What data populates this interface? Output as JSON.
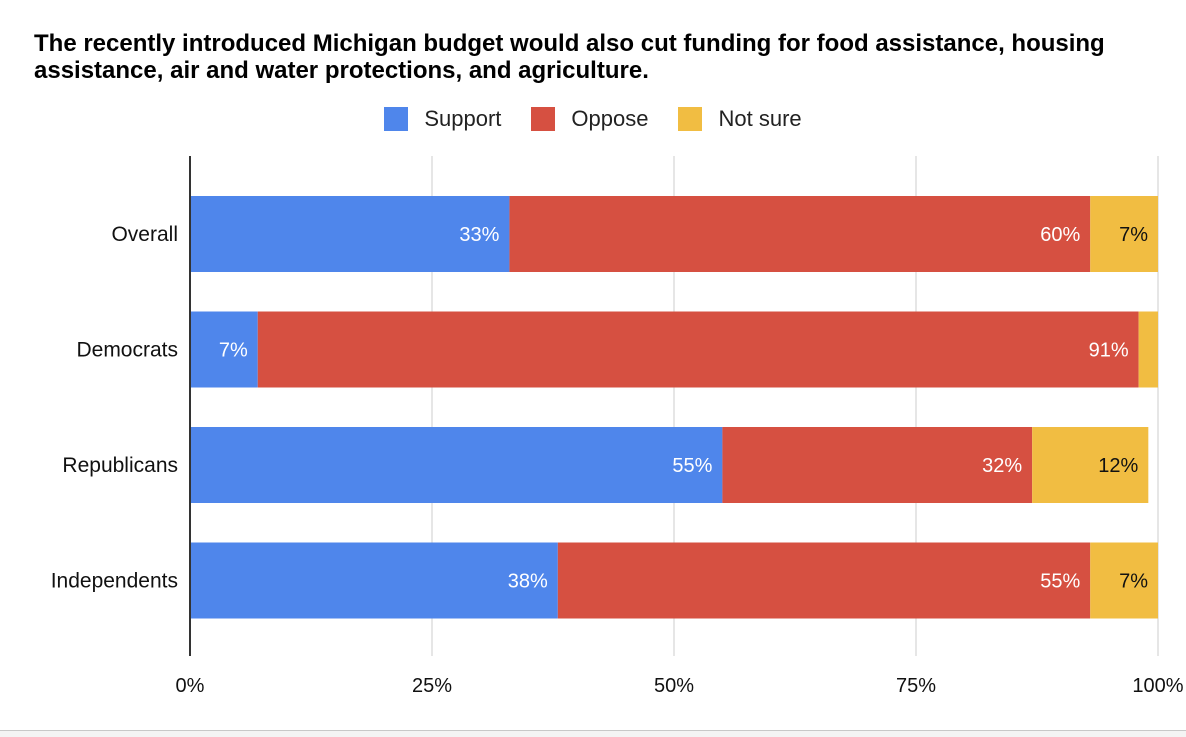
{
  "colors": {
    "support": "#4f86eb",
    "oppose": "#d65041",
    "not_sure": "#f1bd42",
    "grid": "#cccccc",
    "axis": "#333333"
  },
  "chart_data": {
    "type": "bar",
    "orientation": "horizontal",
    "stacked": "percent",
    "title": "The recently introduced Michigan budget would also cut funding for food assistance, housing assistance, air and water protections, and agriculture.",
    "categories": [
      "Overall",
      "Democrats",
      "Republicans",
      "Independents"
    ],
    "series": [
      {
        "name": "Support",
        "color": "#4f86eb",
        "values": [
          33,
          7,
          55,
          38
        ],
        "labels": [
          "33%",
          "7%",
          "55%",
          "38%"
        ]
      },
      {
        "name": "Oppose",
        "color": "#d65041",
        "values": [
          60,
          91,
          32,
          55
        ],
        "labels": [
          "60%",
          "91%",
          "32%",
          "55%"
        ]
      },
      {
        "name": "Not sure",
        "color": "#f1bd42",
        "values": [
          7,
          2,
          12,
          7
        ],
        "labels": [
          "7%",
          "",
          "12%",
          "7%"
        ]
      }
    ],
    "xlim": [
      0,
      100
    ],
    "xticks": [
      "0%",
      "25%",
      "50%",
      "75%",
      "100%"
    ],
    "grid": true,
    "legend": "top-center"
  }
}
